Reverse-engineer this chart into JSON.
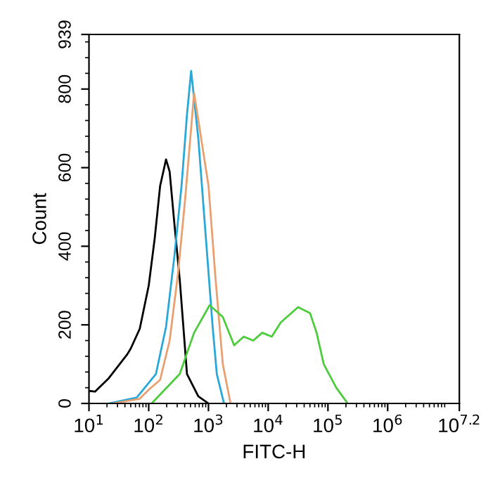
{
  "chart_data": {
    "type": "line",
    "xlabel": "FITC-H",
    "ylabel": "Count",
    "log": "x",
    "xlim": [
      10,
      15848932
    ],
    "xticks": [
      {
        "value": 10,
        "label": "10$^{1}$"
      },
      {
        "value": 100,
        "label": "10$^{2}$"
      },
      {
        "value": 1000,
        "label": "10$^{3}$"
      },
      {
        "value": 10000,
        "label": "10$^{4}$"
      },
      {
        "value": 100000,
        "label": "10$^{5}$"
      },
      {
        "value": 1000000,
        "label": "10$^{6}$"
      },
      {
        "value": 15848932,
        "label": "10$^{7.2}$"
      }
    ],
    "ylim": [
      0,
      939
    ],
    "yticks": [
      0,
      200,
      400,
      600,
      800,
      939
    ],
    "grid": false,
    "legend": false,
    "marker": "none",
    "line_style": "solid",
    "series": [
      {
        "color": "#000000",
        "x": [
          10,
          12.6,
          21.4,
          43.7,
          50.1,
          70.8,
          100,
          126,
          155,
          195,
          224,
          269,
          331,
          437,
          676,
          1000
        ],
        "values": [
          32,
          30,
          64,
          125,
          140,
          190,
          300,
          420,
          553,
          621,
          590,
          457,
          314,
          75,
          18,
          0
        ]
      },
      {
        "color": "#29a8d8",
        "x": [
          21.4,
          63.1,
          91.2,
          132,
          195,
          269,
          355,
          437,
          513,
          676,
          891,
          1175,
          1380,
          1820
        ],
        "values": [
          0,
          15,
          45,
          75,
          195,
          375,
          555,
          735,
          846,
          675,
          435,
          195,
          75,
          0
        ]
      },
      {
        "color": "#e8a070",
        "x": [
          25.1,
          70.8,
          100,
          155,
          224,
          309,
          407,
          513,
          575,
          1000,
          1318,
          1738,
          2344
        ],
        "values": [
          0,
          12,
          35,
          60,
          160,
          330,
          520,
          700,
          790,
          555,
          315,
          100,
          0
        ]
      },
      {
        "color": "#4ccc3c",
        "x": [
          112,
          331,
          575,
          1047,
          1738,
          2692,
          3890,
          5623,
          7943,
          11482,
          16218,
          31623,
          50119,
          64565,
          85114,
          138038,
          213796
        ],
        "values": [
          0,
          75,
          180,
          250,
          220,
          148,
          170,
          160,
          180,
          170,
          206,
          245,
          230,
          180,
          100,
          40,
          0
        ]
      }
    ]
  }
}
